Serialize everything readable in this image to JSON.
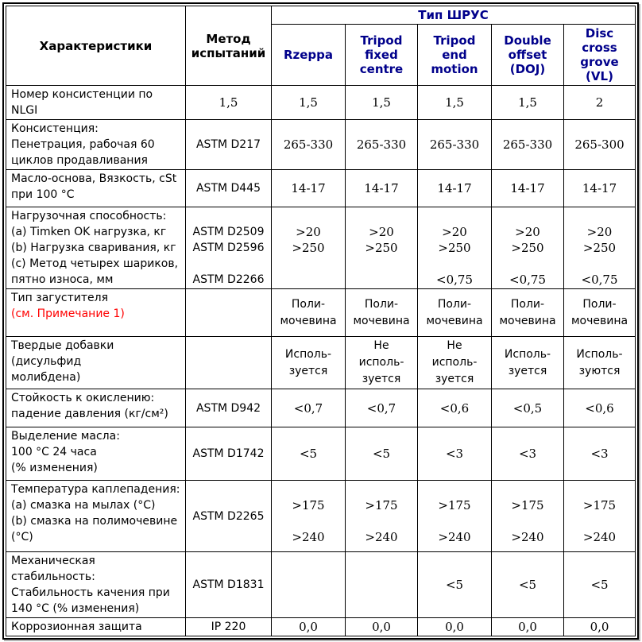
{
  "colors": {
    "header_text": "#00008B",
    "note_text": "#FF0000"
  },
  "table": {
    "header": {
      "characteristics": "Характеристики",
      "test_method": "Метод\nиспытаний",
      "group": "Тип ШРУС",
      "types": [
        "Rzeppa",
        "Tripod\nfixed\ncentre",
        "Tripod\nend\nmotion",
        "Double\noffset\n(DOJ)",
        "Disc\ncross\ngrove\n(VL)"
      ]
    },
    "rows": [
      {
        "name": "Номер консистенции по NLGI",
        "method": "1,5",
        "values": [
          "1,5",
          "1,5",
          "1,5",
          "1,5",
          "2"
        ]
      },
      {
        "name": "Консистенция:\nПенетрация, рабочая 60\nциклов продавливания",
        "method": "ASTM D217",
        "values": [
          "265-330",
          "265-330",
          "265-330",
          "265-330",
          "265-300"
        ]
      },
      {
        "name": "Масло-основа, Вязкость, cSt\nпри 100 °C",
        "method": "ASTM D445",
        "values": [
          "14-17",
          "14-17",
          "14-17",
          "14-17",
          "14-17"
        ]
      },
      {
        "name": "Нагрузочная способность:\n(a) Timken OK нагрузка, кг\n(b) Нагрузка сваривания, кг\n(c) Метод четырех шариков,\nпятно износа, мм",
        "method": "\nASTM D2509\nASTM D2596\n\nASTM D2266",
        "values": [
          "\n>20\n>250",
          "\n>20\n>250",
          "\n>20\n>250\n\n<0,75",
          "\n>20\n>250\n\n<0,75",
          "\n>20\n>250\n\n<0,75"
        ]
      },
      {
        "name": "Тип загустителя",
        "note": "(см. Примечание 1)",
        "method": "",
        "values": [
          "Поли-\nмочевина",
          "Поли-\nмочевина",
          "Поли-\nмочевина",
          "Поли-\nмочевина",
          "Поли-\nмочевина"
        ]
      },
      {
        "name": "Твердые добавки (дисульфид\nмолибдена)",
        "method": "",
        "values": [
          "Исполь-\nзуется",
          "Не\nисполь-\nзуется",
          "Не\nисполь-\nзуется",
          "Исполь-\nзуется",
          "Исполь-\nзуются"
        ]
      },
      {
        "name": "Стойкость к окислению:\nпадение давления (кг/см²)",
        "method": "ASTM D942",
        "values": [
          "<0,7",
          "<0,7",
          "<0,6",
          "<0,5",
          "<0,6"
        ]
      },
      {
        "name": "Выделение масла:\n100 °C 24 часа\n(% изменения)",
        "method": "ASTM D1742",
        "values": [
          "<5",
          "<5",
          "<3",
          "<3",
          "<3"
        ]
      },
      {
        "name": "Температура каплепадения:\n(a) смазка на мылах (°C)\n(b) смазка на полимочевине\n(°C)",
        "method": "ASTM D2265",
        "values": [
          "\n>175\n\n>240",
          "\n>175\n\n>240",
          "\n>175\n\n>240",
          "\n>175\n\n>240",
          "\n>175\n\n>240"
        ]
      },
      {
        "name": "Механическая стабильность:\nСтабильность качения при\n140 °C (% изменения)",
        "method": "ASTM D1831",
        "values": [
          "",
          "",
          "<5",
          "<5",
          "<5"
        ]
      },
      {
        "name": "Коррозионная защита",
        "method": "IP 220",
        "values": [
          "0,0",
          "0,0",
          "0,0",
          "0,0",
          "0,0"
        ]
      }
    ]
  }
}
